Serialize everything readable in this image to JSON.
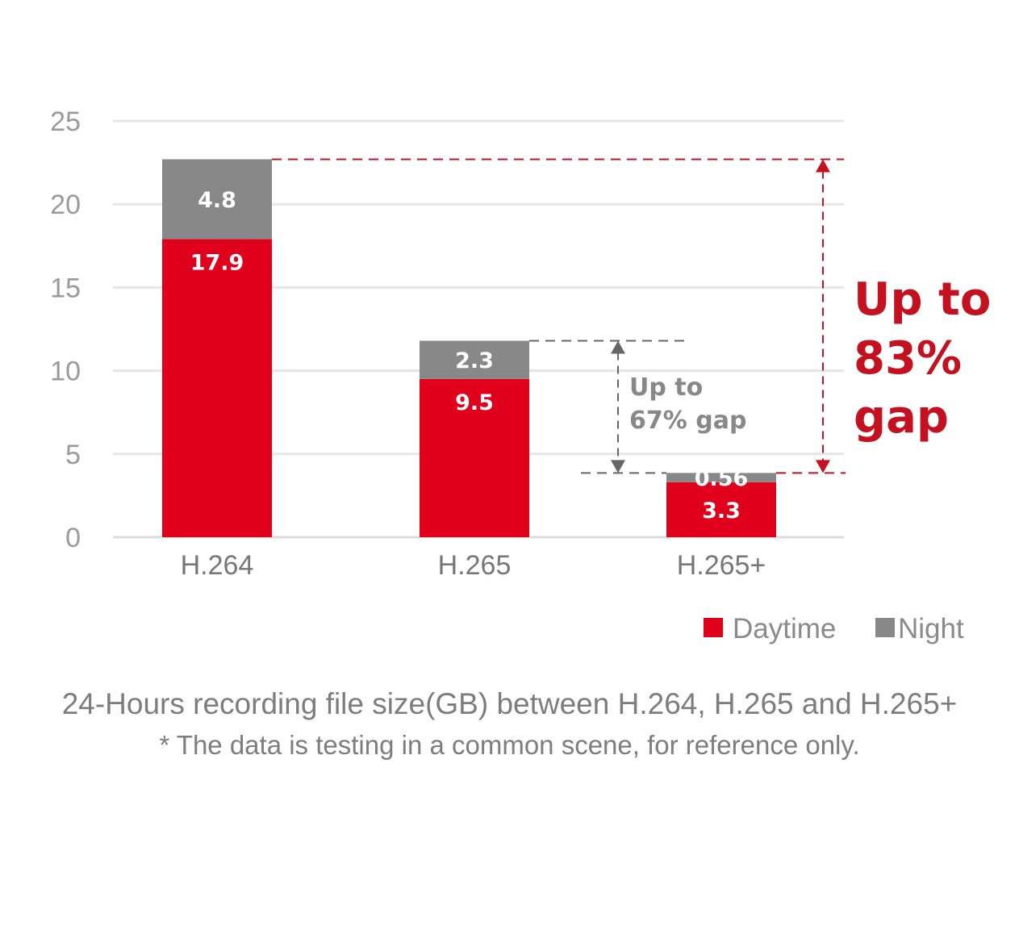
{
  "chart_data": {
    "type": "bar",
    "stacked": true,
    "categories": [
      "H.264",
      "H.265",
      "H.265+"
    ],
    "series": [
      {
        "name": "Daytime",
        "values": [
          17.9,
          9.5,
          3.3
        ],
        "labels": [
          "17.9",
          "9.5",
          "3.3"
        ],
        "color": "#e0001b"
      },
      {
        "name": "Night",
        "values": [
          4.8,
          2.3,
          0.56
        ],
        "labels": [
          "4.8",
          "2.3",
          "0.56"
        ],
        "color": "#888888"
      }
    ],
    "ylim": [
      0,
      25
    ],
    "yticks": [
      "0",
      "5",
      "10",
      "15",
      "20",
      "25"
    ],
    "grid": true,
    "legend_position": "bottom-right",
    "annotations": [
      {
        "lines": [
          "Up to",
          "67% gap"
        ],
        "color": "#888888"
      },
      {
        "lines": [
          "Up to",
          "83%",
          "gap"
        ],
        "color": "#c4101f"
      }
    ],
    "caption": "24-Hours recording file size(GB) between H.264, H.265 and H.265+",
    "note": "* The data is testing in a common scene, for reference only."
  }
}
